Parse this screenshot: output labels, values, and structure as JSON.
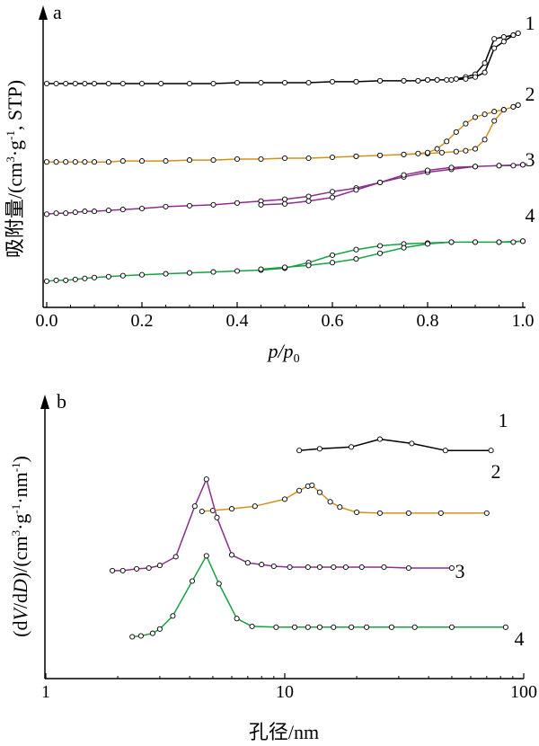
{
  "colors": {
    "axis": "#000000",
    "series_1": "#000000",
    "series_2": "#d4901e",
    "series_3": "#8b2f8b",
    "series_4": "#18a046",
    "marker_fill": "#ffffff",
    "marker_stroke": "#000000"
  },
  "chart_data": [
    {
      "type": "line",
      "panel": "a",
      "xlabel": "p/p0",
      "ylabel": "吸附量/(cm³·g⁻¹, STP)",
      "xlim": [
        0.0,
        1.0
      ],
      "xticks": [
        0.0,
        0.2,
        0.4,
        0.6,
        0.8,
        1.0
      ],
      "xtick_labels": [
        "0.0",
        "0.2",
        "0.4",
        "0.6",
        "0.8",
        "1.0"
      ],
      "ylim": [
        0,
        320
      ],
      "yticks_shown": false,
      "grid": false,
      "series": [
        {
          "name": "1",
          "label": "1",
          "color_key": "series_1",
          "x": [
            0.0,
            0.02,
            0.04,
            0.06,
            0.08,
            0.1,
            0.13,
            0.16,
            0.2,
            0.24,
            0.3,
            0.35,
            0.4,
            0.45,
            0.5,
            0.55,
            0.6,
            0.65,
            0.7,
            0.75,
            0.78,
            0.8,
            0.82,
            0.84,
            0.86,
            0.88,
            0.9,
            0.92,
            0.94,
            0.96,
            0.98,
            0.99,
            0.99,
            0.98,
            0.96,
            0.94,
            0.92,
            0.9,
            0.88,
            0.85,
            0.82,
            0.8,
            0.78,
            0.75,
            0.7,
            0.65
          ],
          "y": [
            240,
            240,
            240,
            240,
            240,
            240,
            240,
            240,
            240,
            240,
            240,
            240,
            241,
            241,
            241,
            241,
            242,
            242,
            243,
            243,
            243,
            244,
            244,
            244,
            245,
            247,
            250,
            262,
            288,
            290,
            292,
            294,
            294,
            292,
            285,
            278,
            252,
            247,
            245,
            244,
            244,
            244,
            243,
            243,
            243,
            242
          ]
        },
        {
          "name": "2",
          "label": "2",
          "color_key": "series_2",
          "x": [
            0.0,
            0.02,
            0.04,
            0.06,
            0.08,
            0.1,
            0.13,
            0.16,
            0.2,
            0.25,
            0.3,
            0.35,
            0.4,
            0.45,
            0.5,
            0.55,
            0.6,
            0.65,
            0.7,
            0.75,
            0.8,
            0.83,
            0.86,
            0.88,
            0.9,
            0.92,
            0.94,
            0.96,
            0.98,
            0.99,
            0.99,
            0.98,
            0.96,
            0.94,
            0.92,
            0.9,
            0.88,
            0.86,
            0.84,
            0.82,
            0.8,
            0.78,
            0.75,
            0.7,
            0.65
          ],
          "y": [
            156,
            156,
            156,
            156,
            156,
            156,
            156,
            157,
            157,
            157,
            158,
            158,
            159,
            159,
            160,
            160,
            161,
            162,
            163,
            164,
            165,
            166,
            167,
            168,
            170,
            180,
            200,
            212,
            215,
            217,
            217,
            215,
            212,
            210,
            207,
            204,
            197,
            188,
            178,
            170,
            166,
            165,
            164,
            163,
            162
          ]
        },
        {
          "name": "3",
          "label": "3",
          "color_key": "series_3",
          "x": [
            0.0,
            0.02,
            0.04,
            0.06,
            0.08,
            0.1,
            0.13,
            0.16,
            0.2,
            0.25,
            0.3,
            0.35,
            0.4,
            0.45,
            0.5,
            0.55,
            0.6,
            0.65,
            0.7,
            0.75,
            0.8,
            0.85,
            0.9,
            0.95,
            0.98,
            1.0,
            1.0,
            0.95,
            0.9,
            0.85,
            0.8,
            0.75,
            0.7,
            0.65,
            0.6,
            0.55,
            0.5,
            0.45
          ],
          "y": [
            100,
            101,
            101,
            102,
            103,
            103,
            104,
            105,
            106,
            108,
            109,
            110,
            112,
            114,
            116,
            119,
            124,
            128,
            134,
            140,
            145,
            148,
            151,
            152,
            152,
            153,
            153,
            152,
            151,
            150,
            147,
            142,
            134,
            126,
            118,
            114,
            111,
            110
          ]
        },
        {
          "name": "4",
          "label": "4",
          "color_key": "series_4",
          "x": [
            0.0,
            0.02,
            0.04,
            0.06,
            0.08,
            0.1,
            0.13,
            0.16,
            0.2,
            0.25,
            0.3,
            0.35,
            0.4,
            0.45,
            0.5,
            0.55,
            0.6,
            0.65,
            0.7,
            0.75,
            0.8,
            0.85,
            0.9,
            0.95,
            0.98,
            1.0,
            1.0,
            0.95,
            0.9,
            0.85,
            0.8,
            0.75,
            0.7,
            0.65,
            0.6,
            0.55,
            0.5,
            0.45
          ],
          "y": [
            28,
            29,
            29,
            30,
            31,
            32,
            33,
            34,
            35,
            36,
            37,
            38,
            39,
            40,
            42,
            48,
            56,
            62,
            66,
            68,
            69,
            70,
            70,
            70,
            70,
            71,
            71,
            70,
            70,
            70,
            68,
            64,
            58,
            52,
            48,
            45,
            43,
            41
          ]
        }
      ]
    },
    {
      "type": "line",
      "panel": "b",
      "xlabel": "孔径/nm",
      "ylabel": "(dV/dD)/(cm³·g⁻¹·nm⁻¹)",
      "xscale": "log",
      "xlim": [
        1,
        100
      ],
      "xticks": [
        1,
        10,
        100
      ],
      "xtick_labels": [
        "1",
        "10",
        "100"
      ],
      "ylim": [
        0,
        320
      ],
      "yticks_shown": false,
      "grid": false,
      "series": [
        {
          "name": "1",
          "label": "1",
          "color_key": "series_1",
          "x": [
            11.5,
            14,
            19,
            25,
            34,
            47,
            73
          ],
          "y": [
            262,
            264,
            266,
            275,
            270,
            262,
            262
          ]
        },
        {
          "name": "2",
          "label": "2",
          "color_key": "series_2",
          "x": [
            4.5,
            5,
            6,
            7.5,
            10,
            11.5,
            12.5,
            13,
            14,
            15.5,
            17,
            20,
            25,
            33,
            45,
            70
          ],
          "y": [
            192,
            193,
            195,
            198,
            206,
            216,
            221,
            222,
            214,
            203,
            197,
            191,
            190,
            190,
            190,
            190
          ]
        },
        {
          "name": "3",
          "label": "3",
          "color_key": "series_3",
          "x": [
            1.9,
            2.1,
            2.4,
            2.7,
            3.0,
            3.5,
            4.2,
            4.7,
            5.2,
            6.0,
            7.0,
            8.0,
            9.0,
            10.5,
            12.5,
            14,
            16,
            18,
            21,
            26,
            33,
            50
          ],
          "y": [
            124,
            124,
            126,
            127,
            130,
            140,
            198,
            229,
            185,
            142,
            133,
            131,
            129,
            128,
            128,
            128,
            128,
            128,
            128,
            128,
            127,
            127
          ]
        },
        {
          "name": "4",
          "label": "4",
          "color_key": "series_4",
          "x": [
            2.3,
            2.5,
            2.8,
            3.0,
            3.4,
            4.1,
            4.7,
            5.3,
            6.3,
            7.3,
            9.2,
            11,
            12.5,
            14,
            16,
            19,
            22,
            28,
            35,
            50,
            84
          ],
          "y": [
            48,
            49,
            52,
            57,
            72,
            112,
            141,
            109,
            69,
            60,
            59,
            59,
            59,
            59,
            59,
            59,
            59,
            59,
            59,
            59,
            59
          ]
        }
      ]
    }
  ]
}
